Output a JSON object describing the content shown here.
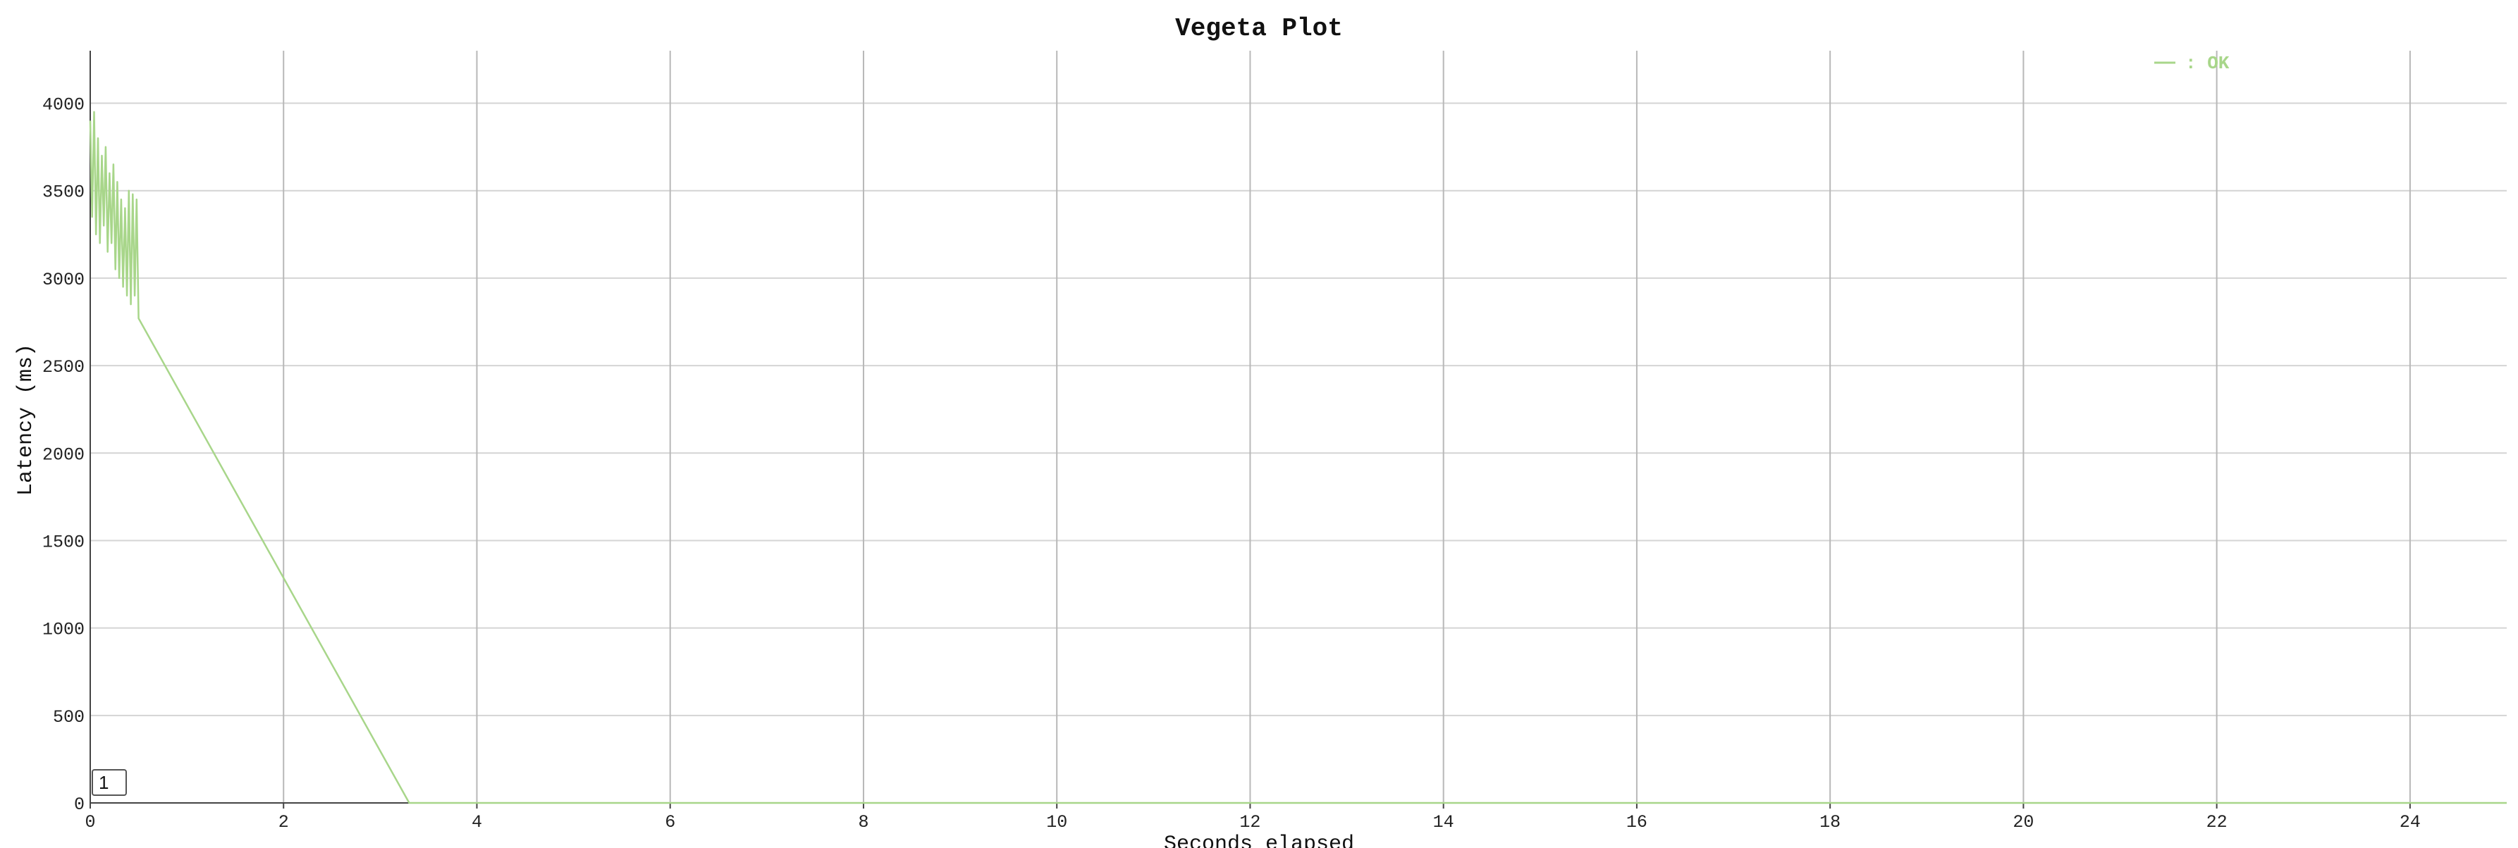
{
  "chart_data": {
    "type": "line",
    "title": "Vegeta Plot",
    "xlabel": "Seconds elapsed",
    "ylabel": "Latency (ms)",
    "xlim": [
      0,
      25
    ],
    "ylim": [
      0,
      4300
    ],
    "x_ticks": [
      0,
      2,
      4,
      6,
      8,
      10,
      12,
      14,
      16,
      18,
      20,
      22,
      24
    ],
    "y_ticks": [
      0,
      500,
      1000,
      1500,
      2000,
      2500,
      3000,
      3500,
      4000
    ],
    "grid": true,
    "legend_position": "top-right",
    "series": [
      {
        "name": ": OK",
        "color": "#a8d68a",
        "x": [
          0.0,
          0.02,
          0.04,
          0.06,
          0.08,
          0.1,
          0.12,
          0.14,
          0.16,
          0.18,
          0.2,
          0.22,
          0.24,
          0.26,
          0.28,
          0.3,
          0.32,
          0.34,
          0.36,
          0.38,
          0.4,
          0.42,
          0.44,
          0.46,
          0.48,
          0.5,
          3.3,
          3.4,
          25.0
        ],
        "y": [
          3900,
          3350,
          3950,
          3250,
          3800,
          3200,
          3700,
          3300,
          3750,
          3150,
          3600,
          3200,
          3650,
          3050,
          3550,
          3000,
          3450,
          2950,
          3400,
          2900,
          3500,
          2850,
          3480,
          2900,
          3450,
          2770,
          0,
          0,
          0
        ]
      }
    ]
  },
  "counter": {
    "value": "1"
  }
}
